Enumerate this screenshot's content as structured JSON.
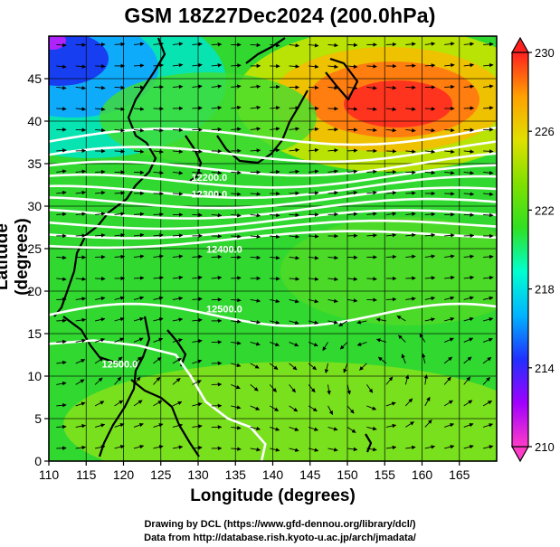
{
  "title": "GSM 18Z27Dec2024 (200.0hPa)",
  "xlabel": "Longitude (degrees)",
  "ylabel": "Latitude  (degrees)",
  "credits": [
    "Drawing by DCL (https://www.gfd-dennou.org/library/dcl/)",
    "Data from http://database.rish.kyoto-u.ac.jp/arch/jmadata/"
  ],
  "chart_data": {
    "type": "heatmap",
    "x_ticks": [
      110,
      115,
      120,
      125,
      130,
      135,
      140,
      145,
      150,
      155,
      160,
      165
    ],
    "y_ticks": [
      0,
      5,
      10,
      15,
      20,
      25,
      30,
      35,
      40,
      45
    ],
    "xlim": [
      110,
      170
    ],
    "ylim": [
      0,
      50
    ],
    "colorbar": {
      "ticks": [
        210,
        214,
        218,
        222,
        226,
        230
      ],
      "min": 210,
      "max": 230,
      "colors": [
        "#ff3cc8",
        "#a000ff",
        "#2030ff",
        "#00b4ff",
        "#00ffd0",
        "#30e020",
        "#80e000",
        "#e0e000",
        "#ffa000",
        "#ff2020"
      ]
    },
    "contour_labels": [
      {
        "text": "12200.0",
        "lon": 131.5,
        "lat": 33.0
      },
      {
        "text": "12300.0",
        "lon": 131.5,
        "lat": 31.0
      },
      {
        "text": "12400.0",
        "lon": 133.5,
        "lat": 24.5
      },
      {
        "text": "12500.0",
        "lon": 133.5,
        "lat": 17.5
      },
      {
        "text": "12500.0",
        "lon": 119.5,
        "lat": 11.0
      }
    ],
    "accent_colors": {
      "contour": "#ffffff",
      "arrows": "#000000",
      "coast": "#000000",
      "grid": "#000000"
    }
  }
}
